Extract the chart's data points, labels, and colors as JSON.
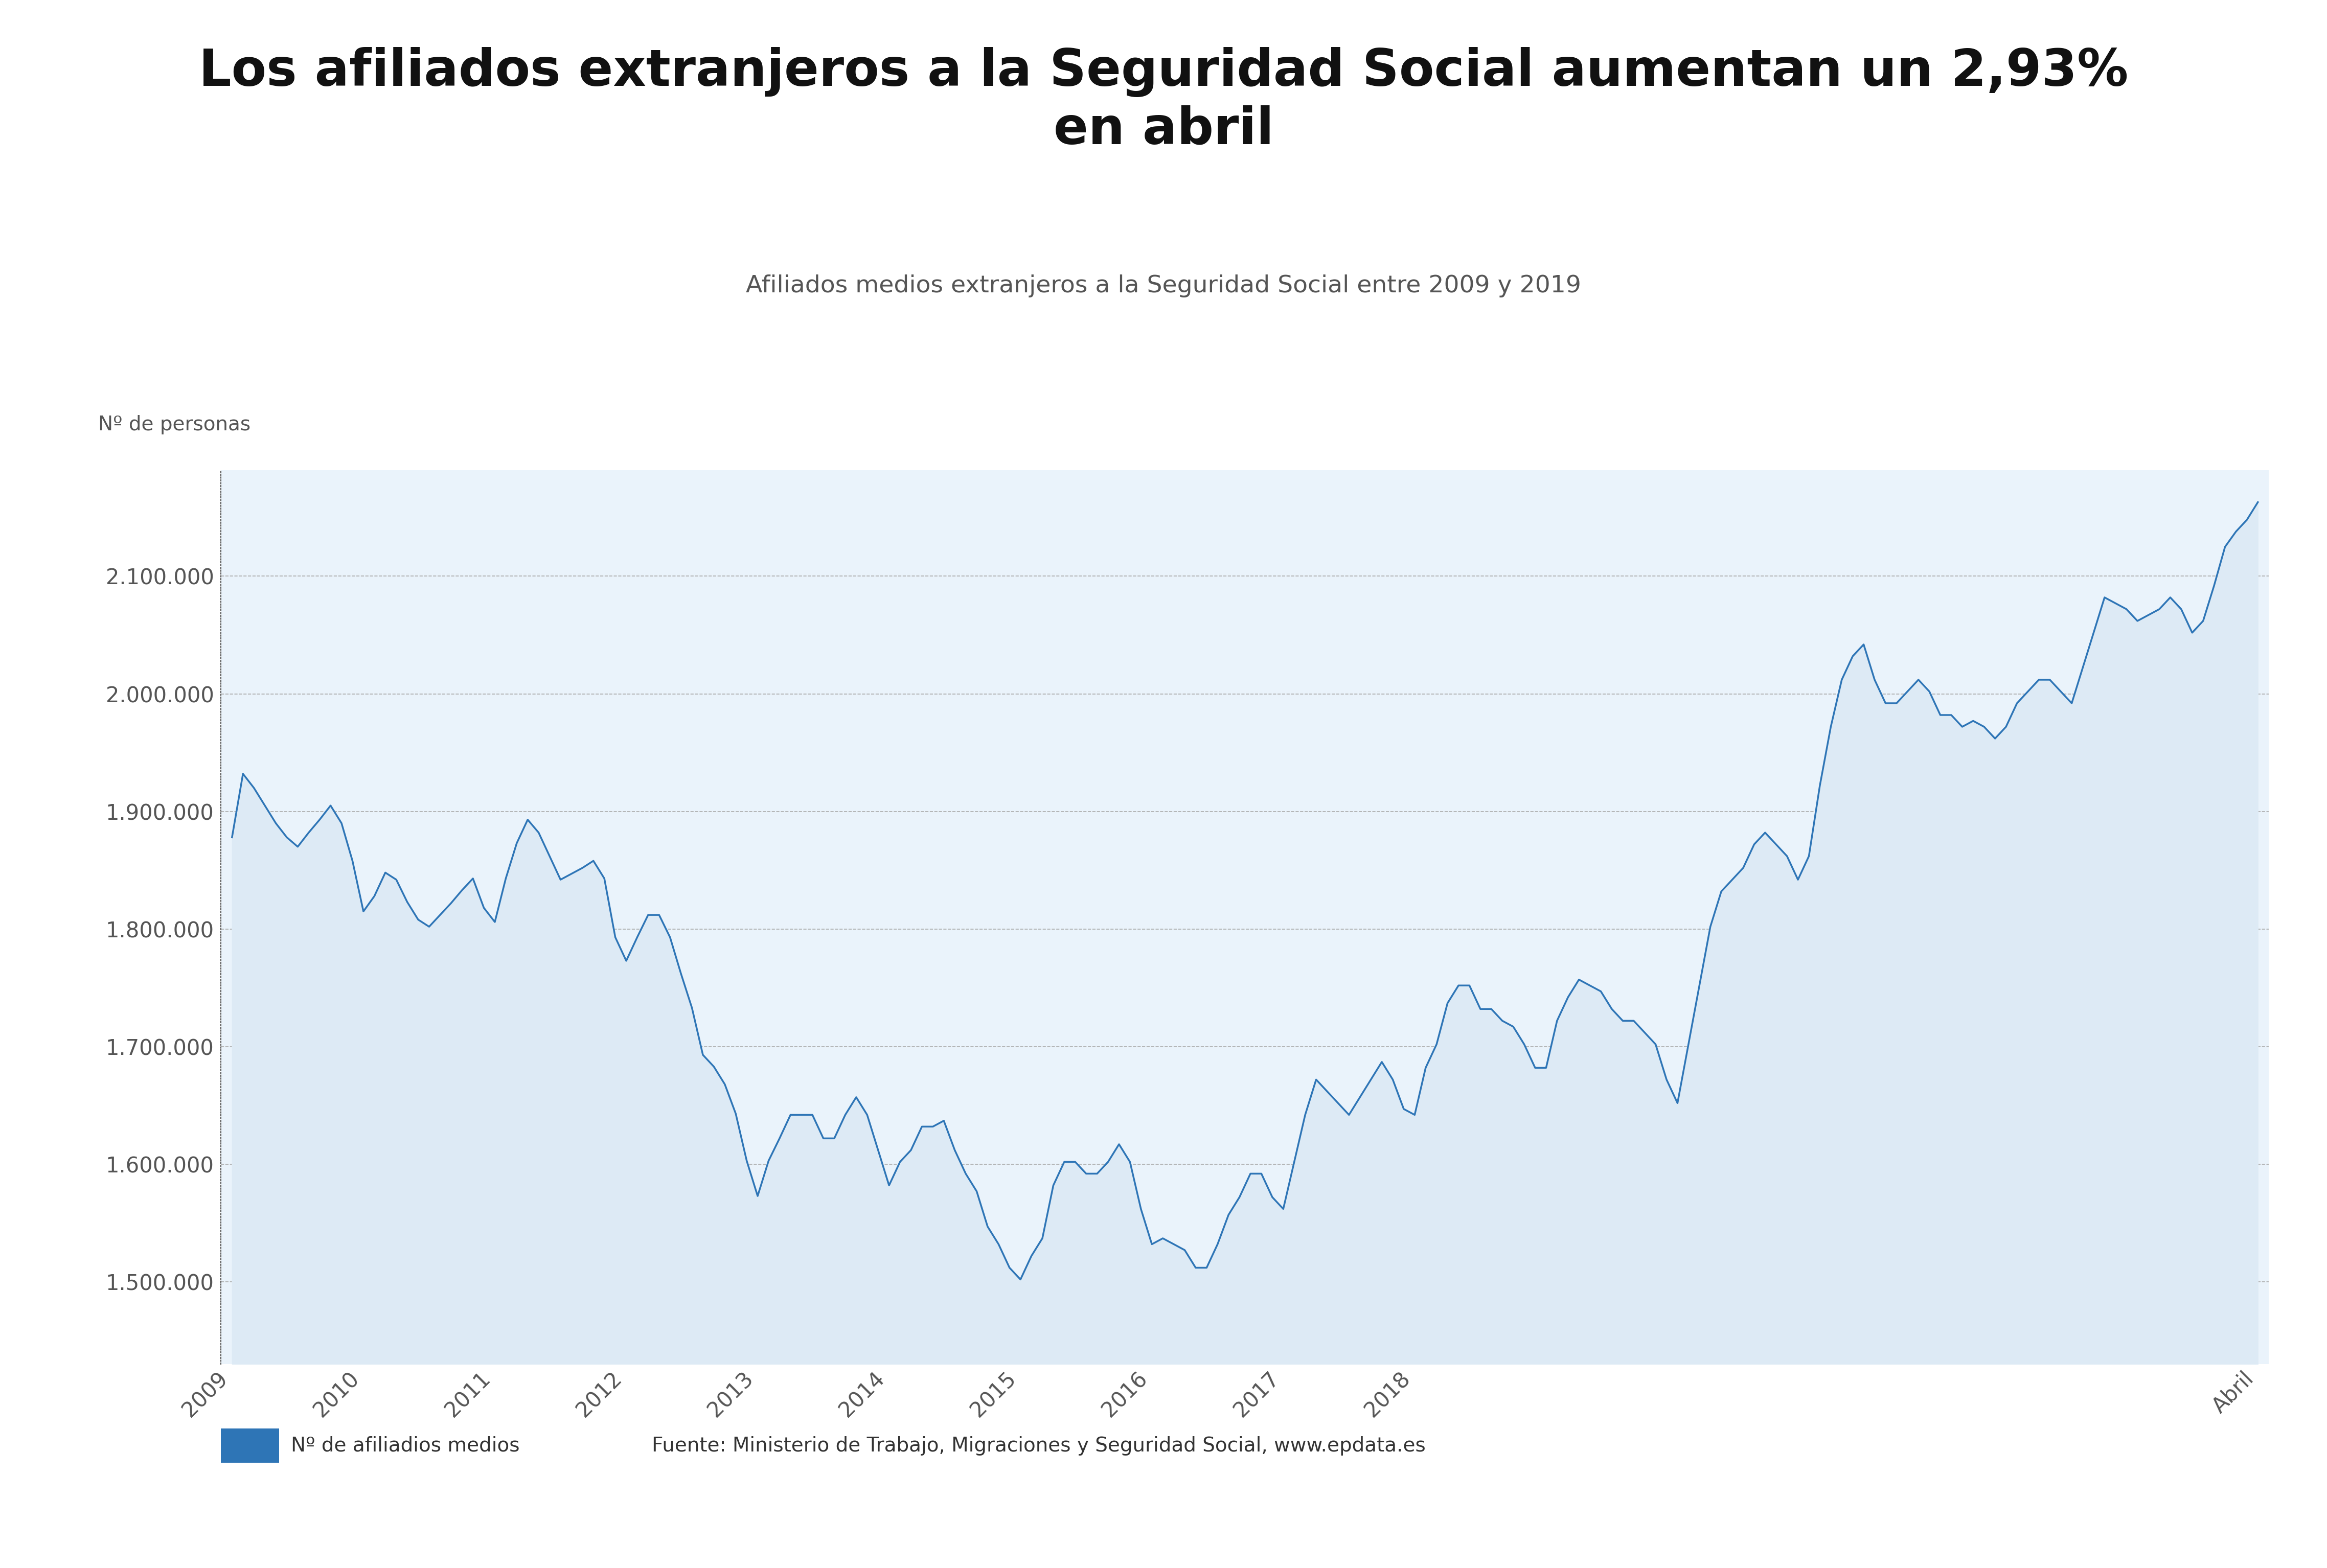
{
  "title": "Los afiliados extranjeros a la Seguridad Social aumentan un 2,93%\nen abril",
  "subtitle": "Afiliados medios extranjeros a la Seguridad Social entre 2009 y 2019",
  "ylabel": "Nº de personas",
  "legend_label": "Nº de afiliadios medios",
  "source": "Fuente: Ministerio de Trabajo, Migraciones y Seguridad Social, www.epdata.es",
  "line_color": "#2E75B6",
  "fill_color": "#ddeaf5",
  "background_color": "#eaf3fb",
  "ylim": [
    1430000,
    2190000
  ],
  "yticks": [
    1500000,
    1600000,
    1700000,
    1800000,
    1900000,
    2000000,
    2100000
  ],
  "values": [
    1878000,
    1932000,
    1920000,
    1905000,
    1890000,
    1878000,
    1870000,
    1882000,
    1893000,
    1905000,
    1890000,
    1858000,
    1815000,
    1828000,
    1848000,
    1842000,
    1823000,
    1808000,
    1802000,
    1812000,
    1822000,
    1833000,
    1843000,
    1818000,
    1806000,
    1843000,
    1873000,
    1893000,
    1882000,
    1862000,
    1842000,
    1847000,
    1852000,
    1858000,
    1843000,
    1793000,
    1773000,
    1793000,
    1812000,
    1812000,
    1793000,
    1762000,
    1733000,
    1693000,
    1683000,
    1668000,
    1643000,
    1603000,
    1573000,
    1603000,
    1622000,
    1642000,
    1642000,
    1642000,
    1622000,
    1622000,
    1642000,
    1657000,
    1642000,
    1612000,
    1582000,
    1602000,
    1612000,
    1632000,
    1632000,
    1637000,
    1612000,
    1592000,
    1577000,
    1547000,
    1532000,
    1512000,
    1502000,
    1522000,
    1537000,
    1582000,
    1602000,
    1602000,
    1592000,
    1592000,
    1602000,
    1617000,
    1602000,
    1562000,
    1532000,
    1537000,
    1532000,
    1527000,
    1512000,
    1512000,
    1532000,
    1557000,
    1572000,
    1592000,
    1592000,
    1572000,
    1562000,
    1602000,
    1642000,
    1672000,
    1662000,
    1652000,
    1642000,
    1657000,
    1672000,
    1687000,
    1672000,
    1647000,
    1642000,
    1682000,
    1702000,
    1737000,
    1752000,
    1752000,
    1732000,
    1732000,
    1722000,
    1717000,
    1702000,
    1682000,
    1682000,
    1722000,
    1742000,
    1757000,
    1752000,
    1747000,
    1732000,
    1722000,
    1722000,
    1712000,
    1702000,
    1672000,
    1652000,
    1702000,
    1752000,
    1802000,
    1832000,
    1842000,
    1852000,
    1872000,
    1882000,
    1872000,
    1862000,
    1842000,
    1862000,
    1922000,
    1972000,
    2012000,
    2032000,
    2042000,
    2012000,
    1992000,
    1992000,
    2002000,
    2012000,
    2002000,
    1982000,
    1982000,
    1972000,
    1977000,
    1972000,
    1962000,
    1972000,
    1992000,
    2002000,
    2012000,
    2012000,
    2002000,
    1992000,
    2022000,
    2052000,
    2082000,
    2077000,
    2072000,
    2062000,
    2067000,
    2072000,
    2082000,
    2072000,
    2052000,
    2062000,
    2092000,
    2125000,
    2138000,
    2148000,
    2163000
  ],
  "n_values": 186,
  "year_tick_months": [
    0,
    12,
    24,
    36,
    48,
    60,
    72,
    84,
    96,
    108,
    120,
    132,
    144,
    156,
    168
  ],
  "year_tick_labels": [
    "2009",
    "2010",
    "2011",
    "2012",
    "2013",
    "2014",
    "2015",
    "2016",
    "2017",
    "2018",
    "",
    "",
    "",
    "",
    ""
  ],
  "abril_tick_month": 185,
  "abril_label": "Abril"
}
